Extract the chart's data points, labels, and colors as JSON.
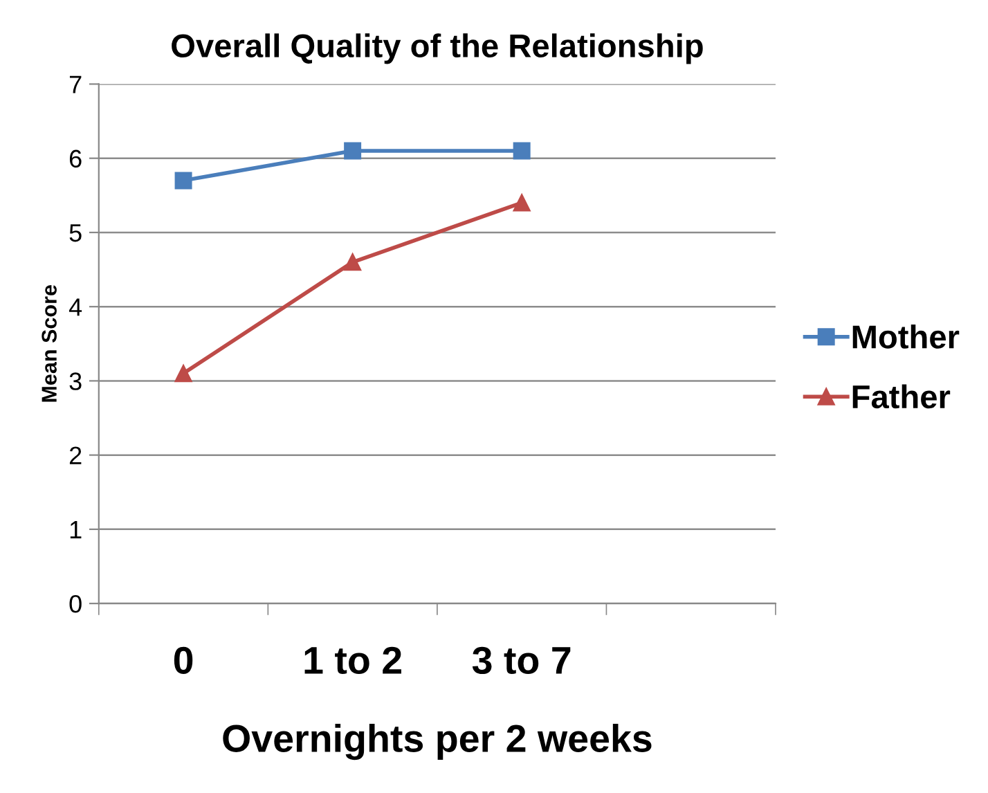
{
  "chart_data": {
    "type": "line",
    "title": "Overall Quality of the Relationship",
    "xlabel": "Overnights per 2 weeks",
    "ylabel": "Mean Score",
    "categories": [
      "0",
      "1 to 2",
      "3 to 7",
      null
    ],
    "series": [
      {
        "name": "Mother",
        "color": "#4a7ebb",
        "marker": "square",
        "values": [
          5.7,
          6.1,
          6.1,
          null
        ]
      },
      {
        "name": "Father",
        "color": "#be4b48",
        "marker": "triangle",
        "values": [
          3.1,
          4.6,
          5.4,
          null
        ]
      }
    ],
    "ylim": [
      0,
      7
    ],
    "yticks": [
      0,
      1,
      2,
      3,
      4,
      5,
      6,
      7
    ],
    "grid": "y",
    "legend": "right",
    "line_style": "solid"
  }
}
